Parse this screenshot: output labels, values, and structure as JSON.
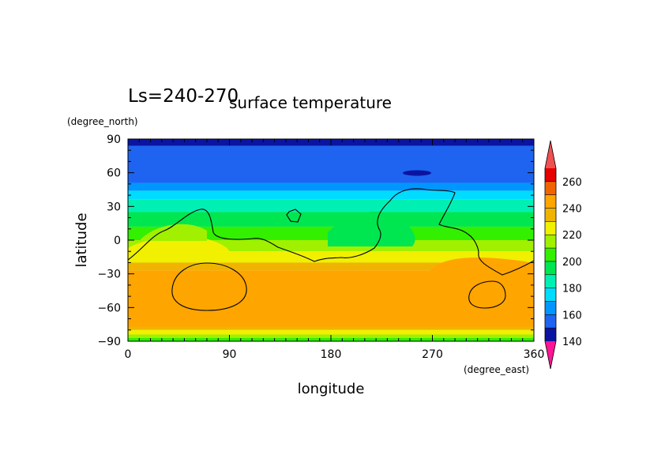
{
  "chart_data": {
    "type": "heatmap",
    "title": "surface temperature",
    "subtitle": "Ls=240-270",
    "xlabel": "longitude",
    "ylabel": "latitude",
    "xunit": "(degree_east)",
    "yunit": "(degree_north)",
    "xlim": [
      0,
      360
    ],
    "ylim": [
      -90,
      90
    ],
    "xticks": [
      "0",
      "90",
      "180",
      "270",
      "360"
    ],
    "yticks": [
      "90",
      "60",
      "30",
      "0",
      "−30",
      "−60",
      "−90"
    ],
    "colorbar": {
      "levels": [
        140,
        150,
        160,
        170,
        180,
        190,
        200,
        210,
        220,
        230,
        240,
        250,
        260,
        270
      ],
      "labels": [
        "140",
        "160",
        "180",
        "200",
        "220",
        "240",
        "260"
      ],
      "colors": [
        "#0a14a0",
        "#1e64f0",
        "#0096ff",
        "#00dcff",
        "#00f0b4",
        "#00e650",
        "#32f000",
        "#a0f000",
        "#f0f000",
        "#f0b400",
        "#ffa500",
        "#f06400",
        "#e60000"
      ],
      "under_color": "#ff1493",
      "over_color": "#f05050"
    },
    "bands": [
      {
        "lat_min": 84,
        "lat_max": 90,
        "value": 145
      },
      {
        "lat_min": 51,
        "lat_max": 84,
        "value": 155
      },
      {
        "lat_min": 44,
        "lat_max": 51,
        "value": 165
      },
      {
        "lat_min": 36,
        "lat_max": 44,
        "value": 175
      },
      {
        "lat_min": 25,
        "lat_max": 36,
        "value": 185
      },
      {
        "lat_min": 12,
        "lat_max": 25,
        "value": 195
      },
      {
        "lat_min": 0,
        "lat_max": 12,
        "value": 205
      },
      {
        "lat_min": -10,
        "lat_max": 0,
        "value": 215
      },
      {
        "lat_min": -20,
        "lat_max": -10,
        "value": 225
      },
      {
        "lat_min": -27,
        "lat_max": -20,
        "value": 235
      },
      {
        "lat_min": -77,
        "lat_max": -27,
        "value": 245
      },
      {
        "lat_min": -80,
        "lat_max": -77,
        "value": 235
      },
      {
        "lat_min": -84,
        "lat_max": -80,
        "value": 225
      },
      {
        "lat_min": -87,
        "lat_max": -84,
        "value": 215
      },
      {
        "lat_min": -90,
        "lat_max": -87,
        "value": 205
      }
    ]
  }
}
